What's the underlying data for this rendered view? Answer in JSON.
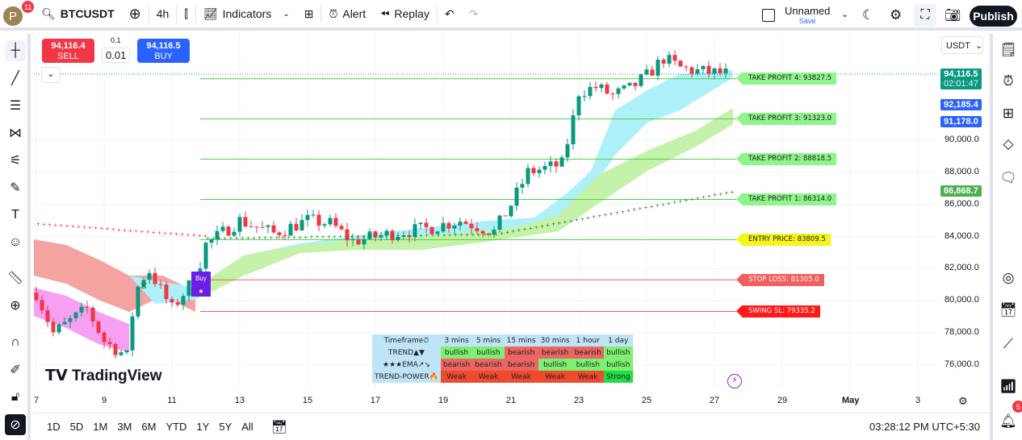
{
  "topbar": {
    "avatar_letter": "P",
    "notifications": "11",
    "symbol": "BTCUSDT",
    "interval": "4h",
    "indicators": "Indicators",
    "alert": "Alert",
    "replay": "Replay",
    "layout_name": "Unnamed",
    "save": "Save",
    "publish": "Publish"
  },
  "trade": {
    "sell_price": "94,116.4",
    "sell": "SELL",
    "qty_step": "0.1",
    "qty": "0.01",
    "buy_price": "94,116.5",
    "buy": "BUY"
  },
  "currency": "USDT",
  "price_axis": {
    "ticks": [
      "90,000.0",
      "88,000.0",
      "86,000.0",
      "84,000.0",
      "82,000.0",
      "80,000.0",
      "78,000.0",
      "76,000.0"
    ],
    "last_price": "94,116.5",
    "countdown": "02:01:47",
    "blue1": "92,185.4",
    "blue2": "91,178.0",
    "green": "86,868.7"
  },
  "time_axis": [
    "7",
    "9",
    "11",
    "13",
    "15",
    "17",
    "19",
    "21",
    "23",
    "25",
    "27",
    "29",
    "May",
    "3"
  ],
  "levels": [
    {
      "label": "TAKE PROFIT 4: 93827.5",
      "price": 93827.5,
      "color": "#8ef58a",
      "line": "#4cd14a"
    },
    {
      "label": "TAKE PROFIT 3: 91323.0",
      "price": 91323.0,
      "color": "#8ef58a",
      "line": "#4cd14a"
    },
    {
      "label": "TAKE PROFIT 2: 88818.5",
      "price": 88818.5,
      "color": "#8ef58a",
      "line": "#4cd14a"
    },
    {
      "label": "TAKE PROFIT 1: 86314.0",
      "price": 86314.0,
      "color": "#8ef58a",
      "line": "#4cd14a"
    },
    {
      "label": "ENTRY PRICE: 83809.5",
      "price": 83809.5,
      "color": "#f5f51a",
      "line": "#4cd14a"
    },
    {
      "label": "STOP LOSS: 81305.0",
      "price": 81305.0,
      "color": "#f25e5e",
      "line": "#f25e5e"
    },
    {
      "label": "SWING SL: 79335.2",
      "price": 79335.2,
      "color": "#ff1a1a",
      "line": "#f25e5e"
    }
  ],
  "buy_signal": {
    "label": "Buy",
    "star": "★"
  },
  "table": {
    "header": [
      "Timeframe⏱",
      "3 mins",
      "5 mins",
      "15 mins",
      "30 mins",
      "1 hour",
      "1 day"
    ],
    "rows": [
      {
        "name": "TREND▲▼",
        "cells": [
          "bullish",
          "bullish",
          "bearish",
          "bearish",
          "bearish",
          "bullish"
        ]
      },
      {
        "name": "★★★EMA↗↘",
        "cells": [
          "bearish",
          "bearish",
          "bearish",
          "bullish",
          "bullish",
          "bullish"
        ]
      },
      {
        "name": "TREND-POWER🔥",
        "cells": [
          "Weak",
          "Weak",
          "Weak",
          "Weak",
          "Weak",
          "Strong"
        ]
      }
    ]
  },
  "watermark": "TradingView",
  "price_path": [
    [
      7,
      80500
    ],
    [
      7.5,
      78000
    ],
    [
      8.5,
      79500
    ],
    [
      9,
      77500
    ],
    [
      9.7,
      76500
    ],
    [
      9.9,
      80500
    ],
    [
      10.3,
      82000
    ],
    [
      11,
      79500
    ],
    [
      11.7,
      81500
    ],
    [
      12,
      83500
    ],
    [
      13,
      85000
    ],
    [
      14,
      84200
    ],
    [
      15,
      85000
    ],
    [
      15.7,
      84800
    ],
    [
      16.3,
      83700
    ],
    [
      17.5,
      84200
    ],
    [
      18.5,
      84500
    ],
    [
      19.5,
      85000
    ],
    [
      20.5,
      84300
    ],
    [
      21,
      86000
    ],
    [
      21.5,
      88000
    ],
    [
      22.5,
      88500
    ],
    [
      22.8,
      91000
    ],
    [
      23,
      93000
    ],
    [
      23.5,
      93300
    ],
    [
      24,
      92800
    ],
    [
      24.5,
      93200
    ],
    [
      25,
      94000
    ],
    [
      25.5,
      95100
    ],
    [
      26,
      94500
    ],
    [
      26.5,
      94300
    ],
    [
      27.5,
      94100
    ]
  ],
  "bottombar": {
    "ranges": [
      "1D",
      "5D",
      "1M",
      "3M",
      "6M",
      "YTD",
      "1Y",
      "5Y",
      "All"
    ],
    "clock": "03:28:12 PM UTC+5:30"
  },
  "colors": {
    "up": "#089981",
    "down": "#f23645",
    "sell": "#f23645",
    "buy": "#2962ff"
  }
}
